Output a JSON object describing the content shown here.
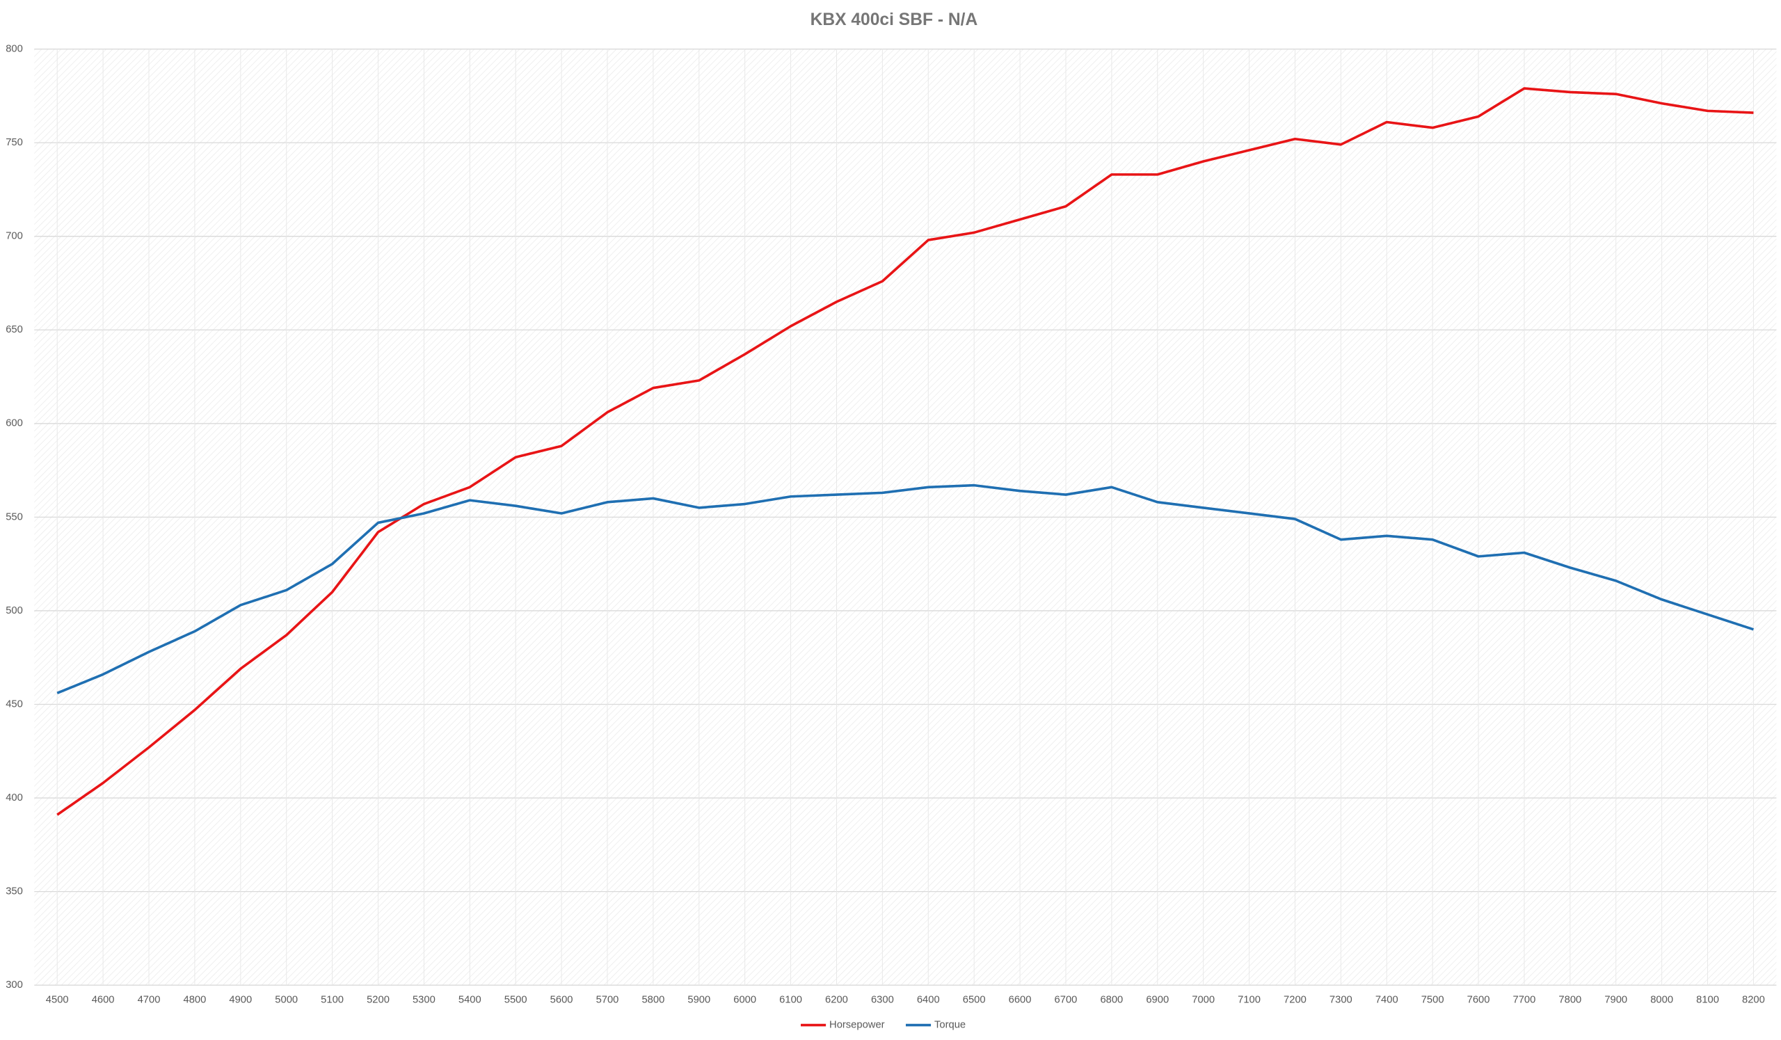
{
  "chart_data": {
    "type": "line",
    "title": "KBX 400ci SBF - N/A",
    "categories": [
      "4500",
      "4600",
      "4700",
      "4800",
      "4900",
      "5000",
      "5100",
      "5200",
      "5300",
      "5400",
      "5500",
      "5600",
      "5700",
      "5800",
      "5900",
      "6000",
      "6100",
      "6200",
      "6300",
      "6400",
      "6500",
      "6600",
      "6700",
      "6800",
      "6900",
      "7000",
      "7100",
      "7200",
      "7300",
      "7400",
      "7500",
      "7600",
      "7700",
      "7800",
      "7900",
      "8000",
      "8100",
      "8200"
    ],
    "series": [
      {
        "name": "Horsepower",
        "color": "#e81416",
        "values": [
          391,
          408,
          427,
          447,
          469,
          487,
          510,
          542,
          557,
          566,
          582,
          588,
          606,
          619,
          623,
          637,
          652,
          665,
          676,
          698,
          702,
          709,
          716,
          733,
          733,
          740,
          746,
          752,
          749,
          761,
          758,
          764,
          779,
          777,
          776,
          771,
          767,
          766
        ]
      },
      {
        "name": "Torque",
        "color": "#1f6fb2",
        "values": [
          456,
          466,
          478,
          489,
          503,
          511,
          525,
          547,
          552,
          559,
          556,
          552,
          558,
          560,
          555,
          557,
          561,
          562,
          563,
          566,
          567,
          564,
          562,
          566,
          558,
          555,
          552,
          549,
          538,
          540,
          538,
          529,
          531,
          523,
          516,
          506,
          498,
          490
        ]
      }
    ],
    "ylim": [
      300,
      800
    ],
    "yticks": [
      300,
      350,
      400,
      450,
      500,
      550,
      600,
      650,
      700,
      750,
      800
    ],
    "grid": true,
    "legend": "bottom"
  }
}
